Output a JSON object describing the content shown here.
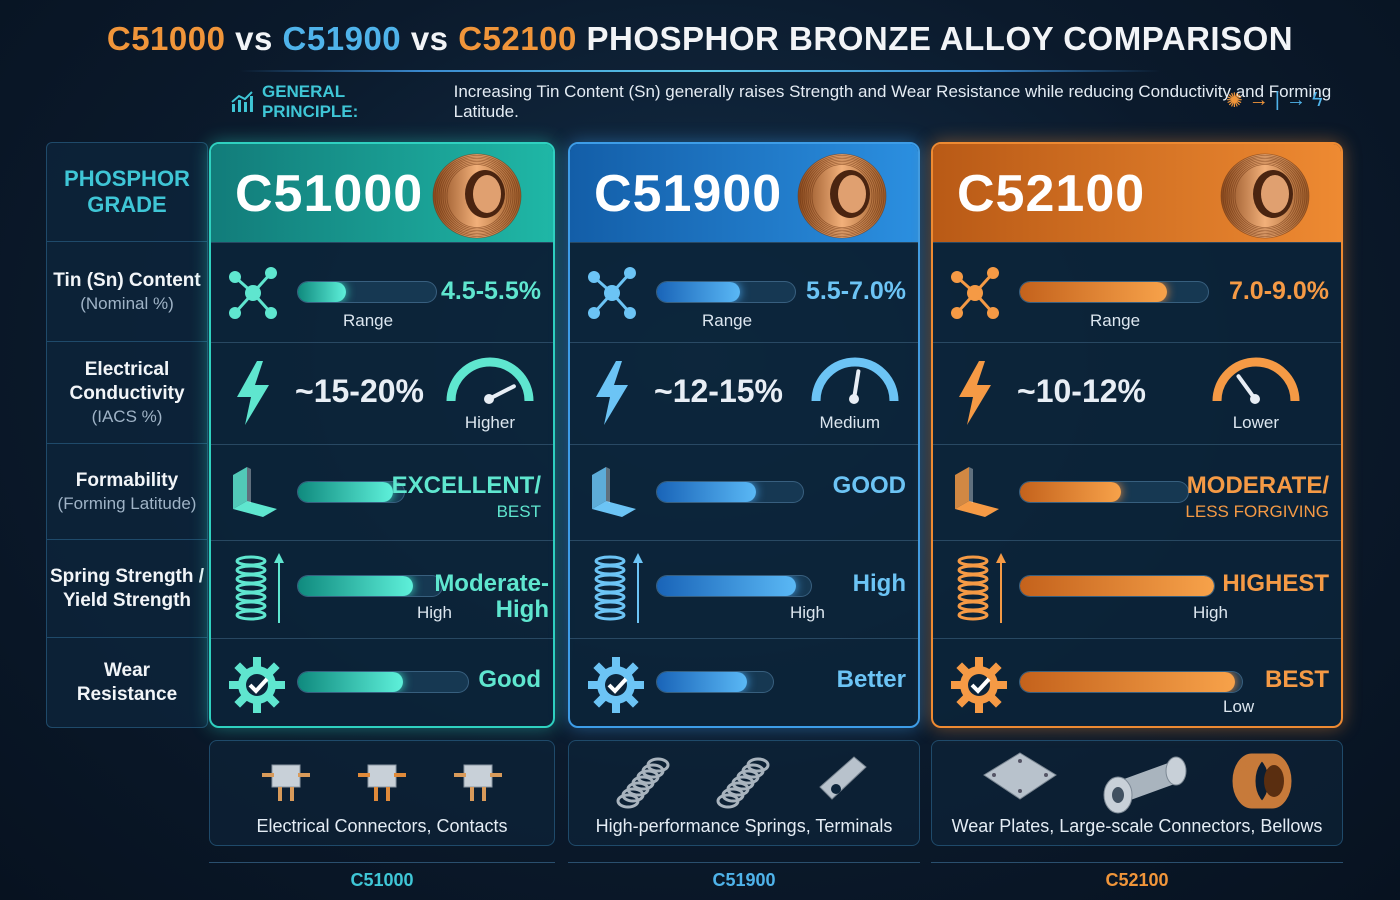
{
  "title": {
    "part1": "C51000",
    "vs1": "vs",
    "part2": "C51900",
    "vs2": "vs",
    "part3": "C52100",
    "rest": "PHOSPHOR BRONZE ALLOY COMPARISON"
  },
  "principle": {
    "lead": "GENERAL PRINCIPLE:",
    "text": "Increasing Tin Content (Sn) generally raises Strength and Wear Resistance while reducing Conductivity and Forming Latitude."
  },
  "labels": {
    "grade": [
      "PHOSPHOR",
      "GRADE"
    ],
    "tin": {
      "main": "Tin (Sn) Content",
      "sub": "(Nominal %)"
    },
    "cond": {
      "main1": "Electrical",
      "main2": "Conductivity",
      "sub": "(IACS %)"
    },
    "form": {
      "main": "Formability",
      "sub": "(Forming Latitude)"
    },
    "spring": {
      "main1": "Spring Strength /",
      "main2": "Yield Strength"
    },
    "wear": {
      "main1": "Wear",
      "main2": "Resistance"
    }
  },
  "alloys": [
    {
      "code": "C51000",
      "tin": {
        "value": "4.5-5.5%",
        "caption": "Range",
        "level": 0.35
      },
      "conductivity": {
        "value": "~15-20%",
        "gauge": "Higher",
        "level": 0.85
      },
      "formability": {
        "rating": "EXCELLENT/",
        "rating_sub": "BEST",
        "level": 0.9
      },
      "spring": {
        "rating1": "Moderate-",
        "rating2": "High",
        "caption": "High",
        "level": 0.8
      },
      "wear": {
        "rating": "Good",
        "level": 0.62
      },
      "application": "Electrical Connectors, Contacts",
      "footer": "C51000"
    },
    {
      "code": "C51900",
      "tin": {
        "value": "5.5-7.0%",
        "caption": "Range",
        "level": 0.6
      },
      "conductivity": {
        "value": "~12-15%",
        "gauge": "Medium",
        "level": 0.55
      },
      "formability": {
        "rating": "GOOD",
        "rating_sub": "",
        "level": 0.68
      },
      "spring": {
        "rating1": "High",
        "rating2": "",
        "caption": "High",
        "level": 0.9
      },
      "wear": {
        "rating": "Better",
        "level": 0.78
      },
      "application": "High-performance Springs, Terminals",
      "footer": "C51900"
    },
    {
      "code": "C52100",
      "tin": {
        "value": "7.0-9.0%",
        "caption": "Range",
        "level": 0.78
      },
      "conductivity": {
        "value": "~10-12%",
        "gauge": "Lower",
        "level": 0.3
      },
      "formability": {
        "rating": "MODERATE/",
        "rating_sub": "LESS FORGIVING",
        "level": 0.6
      },
      "spring": {
        "rating1": "HIGHEST",
        "rating2": "",
        "caption": "High",
        "level": 1.0
      },
      "wear": {
        "rating": "BEST",
        "caption": "Low",
        "level": 0.97
      },
      "application": "Wear Plates, Large-scale Connectors, Bellows",
      "footer": "C52100"
    }
  ],
  "colors": {
    "teal": "#2fd1c0",
    "blue": "#3d9de8",
    "orange": "#ee8a32"
  }
}
